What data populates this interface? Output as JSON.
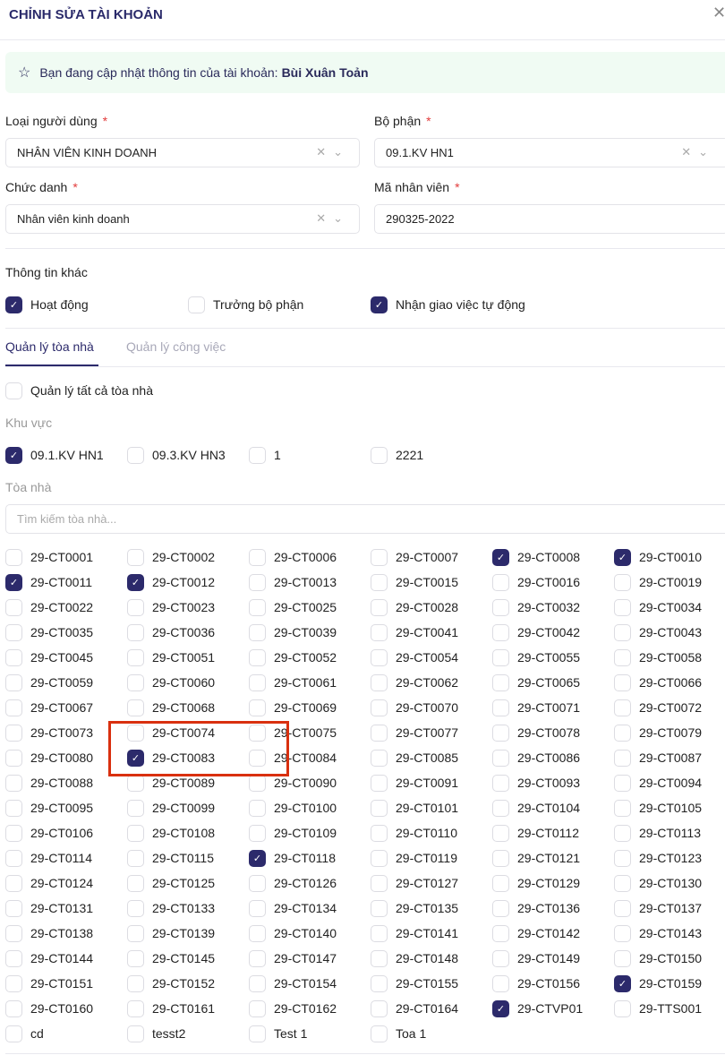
{
  "header": {
    "title": "CHỈNH SỬA TÀI KHOẢN",
    "close_icon": "close-icon"
  },
  "banner": {
    "icon": "star-icon",
    "text": "Bạn đang cập nhật thông tin của tài khoản:",
    "account_name": "Bùi Xuân Toản",
    "background": "#f0fbf3"
  },
  "form": {
    "user_type": {
      "label": "Loại người dùng",
      "required": "*",
      "value": "NHÂN VIÊN KINH DOANH"
    },
    "department": {
      "label": "Bộ phận",
      "required": "*",
      "value": "09.1.KV HN1"
    },
    "position": {
      "label": "Chức danh",
      "required": "*",
      "value": "Nhân viên kinh doanh"
    },
    "employee_code": {
      "label": "Mã nhân viên",
      "required": "*",
      "value": "290325-2022"
    }
  },
  "other_info": {
    "label": "Thông tin khác",
    "options": [
      {
        "label": "Hoạt động",
        "checked": true
      },
      {
        "label": "Trưởng bộ phận",
        "checked": false
      },
      {
        "label": "Nhận giao việc tự động",
        "checked": true
      }
    ]
  },
  "tabs": [
    {
      "label": "Quản lý tòa nhà",
      "active": true
    },
    {
      "label": "Quản lý công việc",
      "active": false
    }
  ],
  "manage_all": {
    "label": "Quản lý tất cả tòa nhà",
    "checked": false
  },
  "regions": {
    "label": "Khu vực",
    "options": [
      {
        "label": "09.1.KV HN1",
        "checked": true
      },
      {
        "label": "09.3.KV HN3",
        "checked": false
      },
      {
        "label": "1",
        "checked": false
      },
      {
        "label": "2221",
        "checked": false
      }
    ]
  },
  "buildings": {
    "label": "Tòa nhà",
    "search_placeholder": "Tìm kiếm tòa nhà...",
    "items": [
      "29-CT0001",
      "29-CT0002",
      "29-CT0006",
      "29-CT0007",
      "29-CT0008",
      "29-CT0010",
      "29-CT0011",
      "29-CT0012",
      "29-CT0013",
      "29-CT0015",
      "29-CT0016",
      "29-CT0019",
      "29-CT0022",
      "29-CT0023",
      "29-CT0025",
      "29-CT0028",
      "29-CT0032",
      "29-CT0034",
      "29-CT0035",
      "29-CT0036",
      "29-CT0039",
      "29-CT0041",
      "29-CT0042",
      "29-CT0043",
      "29-CT0045",
      "29-CT0051",
      "29-CT0052",
      "29-CT0054",
      "29-CT0055",
      "29-CT0058",
      "29-CT0059",
      "29-CT0060",
      "29-CT0061",
      "29-CT0062",
      "29-CT0065",
      "29-CT0066",
      "29-CT0067",
      "29-CT0068",
      "29-CT0069",
      "29-CT0070",
      "29-CT0071",
      "29-CT0072",
      "29-CT0073",
      "29-CT0074",
      "29-CT0075",
      "29-CT0077",
      "29-CT0078",
      "29-CT0079",
      "29-CT0080",
      "29-CT0083",
      "29-CT0084",
      "29-CT0085",
      "29-CT0086",
      "29-CT0087",
      "29-CT0088",
      "29-CT0089",
      "29-CT0090",
      "29-CT0091",
      "29-CT0093",
      "29-CT0094",
      "29-CT0095",
      "29-CT0099",
      "29-CT0100",
      "29-CT0101",
      "29-CT0104",
      "29-CT0105",
      "29-CT0106",
      "29-CT0108",
      "29-CT0109",
      "29-CT0110",
      "29-CT0112",
      "29-CT0113",
      "29-CT0114",
      "29-CT0115",
      "29-CT0118",
      "29-CT0119",
      "29-CT0121",
      "29-CT0123",
      "29-CT0124",
      "29-CT0125",
      "29-CT0126",
      "29-CT0127",
      "29-CT0129",
      "29-CT0130",
      "29-CT0131",
      "29-CT0133",
      "29-CT0134",
      "29-CT0135",
      "29-CT0136",
      "29-CT0137",
      "29-CT0138",
      "29-CT0139",
      "29-CT0140",
      "29-CT0141",
      "29-CT0142",
      "29-CT0143",
      "29-CT0144",
      "29-CT0145",
      "29-CT0147",
      "29-CT0148",
      "29-CT0149",
      "29-CT0150",
      "29-CT0151",
      "29-CT0152",
      "29-CT0154",
      "29-CT0155",
      "29-CT0156",
      "29-CT0159",
      "29-CT0160",
      "29-CT0161",
      "29-CT0162",
      "29-CT0164",
      "29-CTVP01",
      "29-TTS001",
      "cd",
      "tesst2",
      "Test 1",
      "Toa 1"
    ],
    "checked": [
      "29-CT0008",
      "29-CT0010",
      "29-CT0011",
      "29-CT0012",
      "29-CT0083",
      "29-CT0118",
      "29-CT0159",
      "29-CTVP01"
    ]
  },
  "colors": {
    "accent": "#2c2a6b",
    "highlight_annotation": "#d9300f",
    "required": "#e23b3b"
  }
}
